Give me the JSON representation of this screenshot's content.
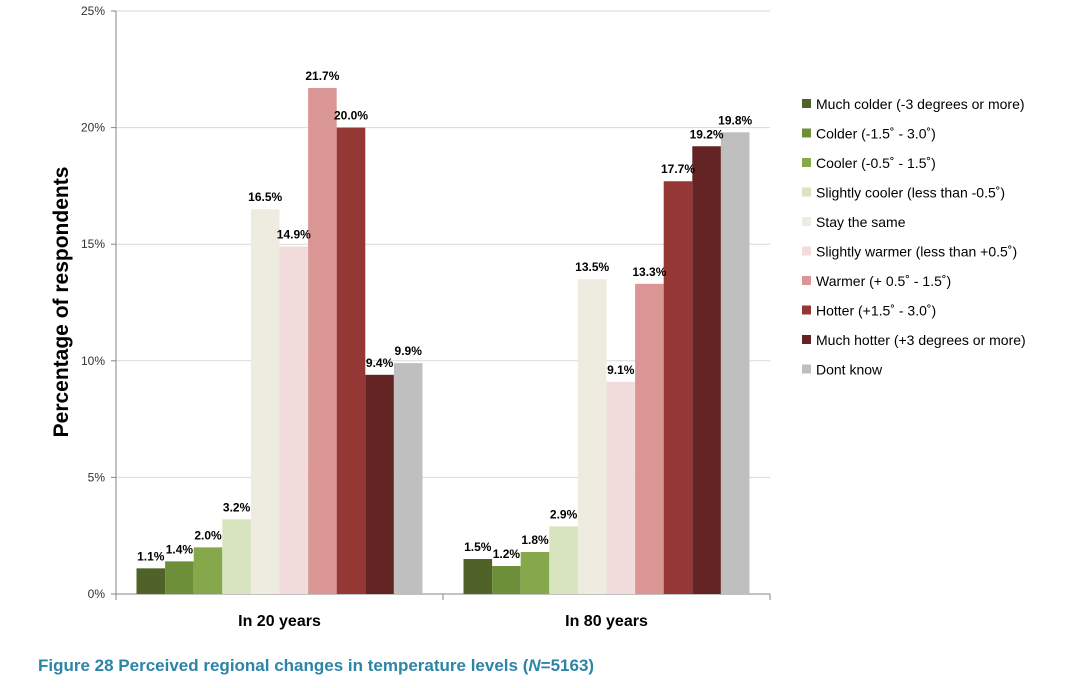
{
  "chart_data": {
    "type": "bar",
    "ylabel": "Percentage of respondents",
    "xlabel": "",
    "ylim": [
      0,
      25
    ],
    "yticks": [
      "0%",
      "5%",
      "10%",
      "15%",
      "20%",
      "25%"
    ],
    "ytick_values": [
      0,
      5,
      10,
      15,
      20,
      25
    ],
    "grid": "horizontal",
    "legend_position": "right",
    "categories": [
      "In 20 years",
      "In 80 years"
    ],
    "series": [
      {
        "name": "Much colder (-3 degrees or more)",
        "color": "#4f6228",
        "values": [
          1.1,
          1.5
        ],
        "labels": [
          "1.1%",
          "1.5%"
        ]
      },
      {
        "name": "Colder (-1.5˚ - 3.0˚)",
        "color": "#6e8f3a",
        "values": [
          1.4,
          1.2
        ],
        "labels": [
          "1.4%",
          "1.2%"
        ]
      },
      {
        "name": "Cooler (-0.5˚ - 1.5˚)",
        "color": "#86a84a",
        "values": [
          2.0,
          1.8
        ],
        "labels": [
          "2.0%",
          "1.8%"
        ]
      },
      {
        "name": "Slightly cooler (less than -0.5˚)",
        "color": "#d7e4bd",
        "values": [
          3.2,
          2.9
        ],
        "labels": [
          "3.2%",
          "2.9%"
        ]
      },
      {
        "name": "Stay the same",
        "color": "#eeece1",
        "values": [
          16.5,
          13.5
        ],
        "labels": [
          "16.5%",
          "13.5%"
        ]
      },
      {
        "name": "Slightly warmer (less than +0.5˚)",
        "color": "#f2dcdb",
        "values": [
          14.9,
          9.1
        ],
        "labels": [
          "14.9%",
          "9.1%"
        ]
      },
      {
        "name": "Warmer (+ 0.5˚ - 1.5˚)",
        "color": "#d99694",
        "values": [
          21.7,
          13.3
        ],
        "labels": [
          "21.7%",
          "13.3%"
        ]
      },
      {
        "name": "Hotter (+1.5˚ - 3.0˚)",
        "color": "#953735",
        "values": [
          20.0,
          17.7
        ],
        "labels": [
          "20.0%",
          "17.7%"
        ]
      },
      {
        "name": "Much hotter (+3 degrees or more)",
        "color": "#632423",
        "values": [
          9.4,
          19.2
        ],
        "labels": [
          "9.4%",
          "19.2%"
        ]
      },
      {
        "name": "Dont know",
        "color": "#bfbfbf",
        "values": [
          9.9,
          19.8
        ],
        "labels": [
          "9.9%",
          "19.8%"
        ]
      }
    ]
  },
  "caption": {
    "prefix": "Figure 28 Perceived regional changes in temperature levels (",
    "n_symbol": "N",
    "suffix": "=5163)"
  }
}
